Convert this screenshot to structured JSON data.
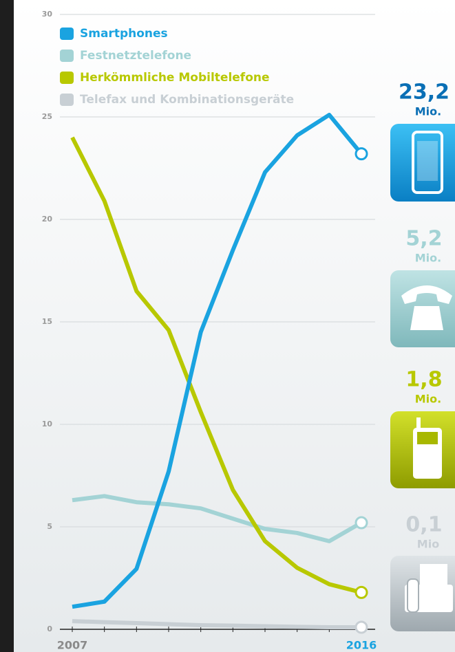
{
  "chart_data": {
    "type": "line",
    "categories": [
      "2007",
      null,
      null,
      null,
      null,
      null,
      null,
      null,
      null,
      "2016"
    ],
    "ylim": [
      0,
      30
    ],
    "yticks": [
      0,
      5,
      10,
      15,
      20,
      25,
      30
    ],
    "grid": true,
    "unit_label": "Mio.",
    "series": [
      {
        "name": "Smartphones",
        "color": "#1aa3e0",
        "values": [
          1.1,
          1.35,
          2.95,
          7.7,
          14.5,
          18.5,
          22.3,
          24.1,
          25.1,
          23.2
        ],
        "value_labels": [
          null,
          null,
          null,
          null,
          null,
          null,
          null,
          null,
          null,
          "23,2"
        ],
        "unit_label": "Mio."
      },
      {
        "name": "Festnetztelefone",
        "color": "#a3d3d5",
        "values": [
          6.3,
          6.5,
          6.2,
          6.1,
          5.9,
          5.4,
          4.9,
          4.7,
          4.3,
          5.2
        ],
        "value_labels": [
          null,
          null,
          null,
          null,
          null,
          null,
          null,
          null,
          null,
          "5,2"
        ],
        "unit_label": "Mio."
      },
      {
        "name": "Herkömmliche Mobiltelefone",
        "color": "#b8c800",
        "values": [
          24.0,
          20.9,
          16.5,
          14.6,
          10.6,
          6.8,
          4.3,
          3.0,
          2.2,
          1.8
        ],
        "value_labels": [
          null,
          null,
          null,
          null,
          null,
          null,
          null,
          null,
          null,
          "1,8"
        ],
        "unit_label": "Mio."
      },
      {
        "name": "Telefax und Kombinationsgeräte",
        "color": "#c8cfd4",
        "values": [
          0.4,
          0.35,
          0.3,
          0.25,
          0.2,
          0.18,
          0.15,
          0.12,
          0.1,
          0.1
        ],
        "value_labels": [
          null,
          null,
          null,
          null,
          null,
          null,
          null,
          null,
          null,
          "0,1"
        ],
        "unit_label": "Mio"
      }
    ]
  }
}
